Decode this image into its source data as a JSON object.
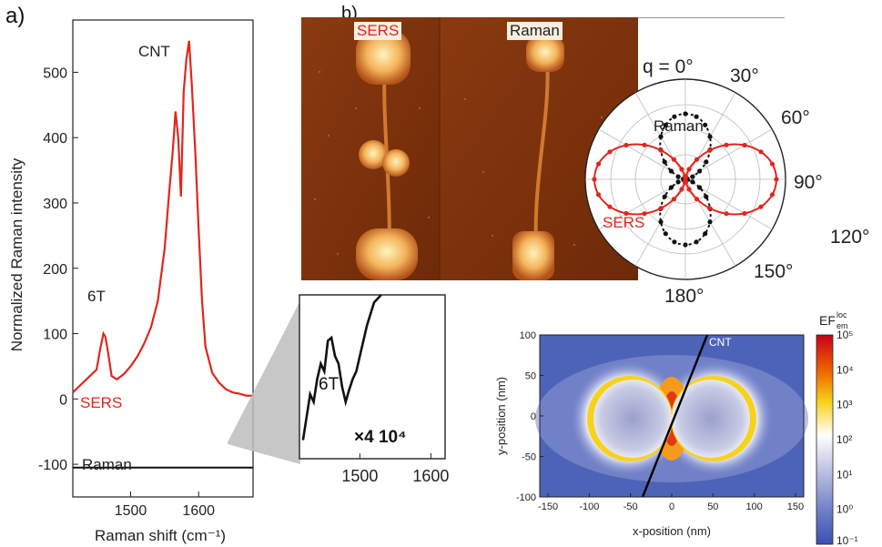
{
  "panel_a": {
    "letter": "a)",
    "xlabel": "Raman shift (cm⁻¹)",
    "ylabel": "Normalized Raman intensity",
    "ann_cnt": "CNT",
    "ann_6t": "6T",
    "ann_sers": "SERS",
    "ann_raman": "Raman",
    "xticks": [
      "1500",
      "1600"
    ],
    "yticks": [
      "-100",
      "0",
      "100",
      "200",
      "300",
      "400",
      "500"
    ]
  },
  "inset": {
    "ann_6t": "6T",
    "ann_factor": "×4 10⁴",
    "xticks": [
      "1500",
      "1600"
    ]
  },
  "panel_b": {
    "letter": "b)",
    "label_sers": "SERS",
    "label_raman": "Raman"
  },
  "polar": {
    "q_label": "q = 0°",
    "angles": [
      "30°",
      "60°",
      "90°",
      "120°",
      "150°",
      "180°"
    ],
    "label_raman": "Raman",
    "label_sers": "SERS"
  },
  "field_map": {
    "xlabel": "x-position (nm)",
    "ylabel": "y-position (nm)",
    "cnt_label": "CNT",
    "xticks": [
      "-150",
      "-100",
      "-50",
      "0",
      "50",
      "100",
      "150"
    ],
    "yticks": [
      "100",
      "50",
      "0",
      "-50",
      "-100"
    ],
    "colorbar_title": "EF",
    "colorbar_sup": "loc",
    "colorbar_sub": "em",
    "colorbar_ticks": [
      "10⁵",
      "10⁴",
      "10³",
      "10²",
      "10¹",
      "10⁰",
      "10⁻¹"
    ]
  },
  "chart_data": [
    {
      "type": "line",
      "title": "",
      "xlabel": "Raman shift (cm⁻¹)",
      "ylabel": "Normalized Raman intensity",
      "xlim": [
        1415,
        1680
      ],
      "ylim": [
        -150,
        580
      ],
      "series": [
        {
          "name": "SERS",
          "color": "#e0261f",
          "x": [
            1415,
            1430,
            1440,
            1450,
            1455,
            1460,
            1463,
            1467,
            1472,
            1480,
            1490,
            1500,
            1510,
            1520,
            1530,
            1540,
            1550,
            1557,
            1562,
            1566,
            1570,
            1574,
            1578,
            1582,
            1586,
            1590,
            1595,
            1600,
            1605,
            1610,
            1620,
            1630,
            1640,
            1650,
            1660,
            1670,
            1680
          ],
          "y": [
            10,
            25,
            35,
            45,
            75,
            100,
            95,
            70,
            35,
            30,
            38,
            50,
            65,
            85,
            110,
            150,
            230,
            320,
            380,
            440,
            400,
            310,
            470,
            520,
            548,
            480,
            380,
            260,
            150,
            80,
            40,
            25,
            15,
            10,
            8,
            5,
            5
          ]
        },
        {
          "name": "Raman",
          "color": "#111111",
          "x": [
            1415,
            1680
          ],
          "y": [
            -105,
            -105
          ]
        }
      ]
    },
    {
      "type": "line",
      "title": "",
      "xlim": [
        1415,
        1620
      ],
      "series": [
        {
          "name": "Raman ×4 10⁴",
          "color": "#111111",
          "x": [
            1420,
            1425,
            1430,
            1435,
            1440,
            1445,
            1450,
            1455,
            1460,
            1465,
            1470,
            1475,
            1480,
            1485,
            1490,
            1495,
            1500,
            1505,
            1510,
            1520,
            1530
          ],
          "y": [
            0.05,
            0.2,
            0.35,
            0.3,
            0.45,
            0.55,
            0.5,
            0.7,
            0.72,
            0.6,
            0.55,
            0.4,
            0.3,
            0.38,
            0.45,
            0.5,
            0.6,
            0.7,
            0.8,
            0.95,
            1.0
          ]
        }
      ]
    },
    {
      "type": "scatter",
      "title": "",
      "note": "polar plot, angle 0-180°",
      "series": [
        {
          "name": "Raman",
          "color": "#111111"
        },
        {
          "name": "SERS",
          "color": "#e0261f"
        }
      ]
    },
    {
      "type": "heatmap",
      "title": "",
      "xlabel": "x-position (nm)",
      "ylabel": "y-position (nm)",
      "xlim": [
        -160,
        160
      ],
      "ylim": [
        -100,
        100
      ],
      "colorscale_range": [
        "10⁻¹",
        "10⁵"
      ]
    }
  ]
}
